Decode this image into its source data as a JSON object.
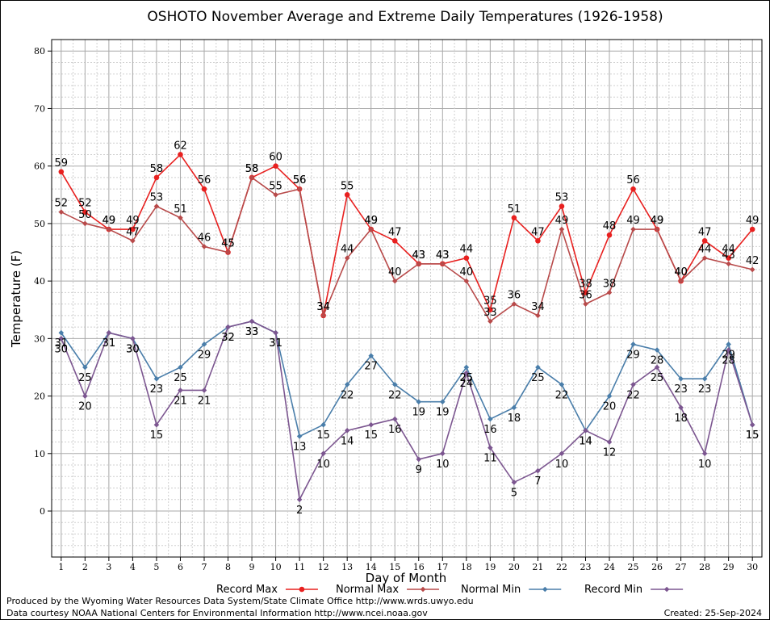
{
  "chart_data": {
    "type": "line",
    "title": "OSHOTO November Average and Extreme Daily Temperatures (1926-1958)",
    "xlabel": "Day of Month",
    "ylabel": "Temperature (F)",
    "xlim": [
      0.6,
      30.4
    ],
    "ylim": [
      -8,
      82
    ],
    "yticks": [
      0,
      10,
      20,
      30,
      40,
      50,
      60,
      70,
      80
    ],
    "x": [
      1,
      2,
      3,
      4,
      5,
      6,
      7,
      8,
      9,
      10,
      11,
      12,
      13,
      14,
      15,
      16,
      17,
      18,
      19,
      20,
      21,
      22,
      23,
      24,
      25,
      26,
      27,
      28,
      29,
      30
    ],
    "grid": true,
    "legend_position": "bottom",
    "series": [
      {
        "name": "Record Max",
        "color": "#e8201f",
        "values": [
          59,
          52,
          49,
          49,
          58,
          62,
          56,
          45,
          58,
          60,
          56,
          34,
          55,
          49,
          47,
          43,
          43,
          44,
          35,
          51,
          47,
          53,
          38,
          48,
          56,
          49,
          40,
          47,
          44,
          49
        ]
      },
      {
        "name": "Normal Max",
        "color": "#b84a4a",
        "values": [
          52,
          50,
          49,
          47,
          53,
          51,
          46,
          45,
          58,
          55,
          56,
          34,
          44,
          49,
          40,
          43,
          43,
          40,
          33,
          36,
          34,
          49,
          36,
          38,
          49,
          49,
          40,
          44,
          43,
          42
        ]
      },
      {
        "name": "Normal Min",
        "color": "#4a7eaa",
        "values": [
          31,
          25,
          31,
          30,
          23,
          25,
          29,
          32,
          33,
          31,
          13,
          15,
          22,
          27,
          22,
          19,
          19,
          25,
          16,
          18,
          25,
          22,
          14,
          20,
          29,
          28,
          23,
          23,
          29,
          15
        ]
      },
      {
        "name": "Record Min",
        "color": "#7c5690",
        "values": [
          30,
          20,
          31,
          30,
          15,
          21,
          21,
          32,
          33,
          31,
          2,
          10,
          14,
          15,
          16,
          9,
          10,
          24,
          11,
          5,
          7,
          10,
          14,
          12,
          22,
          25,
          18,
          10,
          28,
          15
        ]
      }
    ]
  },
  "footer": {
    "produced_by": "Produced by the Wyoming Water Resources Data System/State Climate Office http://www.wrds.uwyo.edu",
    "data_courtesy": "Data courtesy NOAA National Centers for Environmental Information http://www.ncei.noaa.gov",
    "created": "Created:  25-Sep-2024"
  }
}
